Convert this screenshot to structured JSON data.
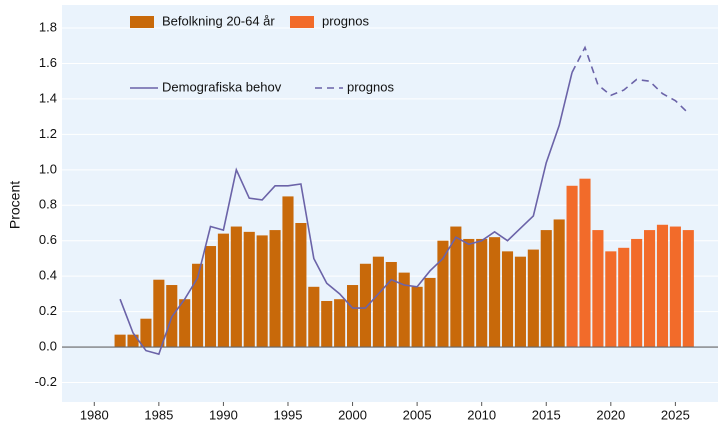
{
  "chart_data": {
    "type": "bar_line",
    "y_label": "Procent",
    "x": [
      1982,
      1983,
      1984,
      1985,
      1986,
      1987,
      1988,
      1989,
      1990,
      1991,
      1992,
      1993,
      1994,
      1995,
      1996,
      1997,
      1998,
      1999,
      2000,
      2001,
      2002,
      2003,
      2004,
      2005,
      2006,
      2007,
      2008,
      2009,
      2010,
      2011,
      2012,
      2013,
      2014,
      2015,
      2016,
      2017,
      2018,
      2019,
      2020,
      2021,
      2022,
      2023,
      2024,
      2025,
      2026
    ],
    "series": [
      {
        "name": "Befolkning 20-64 år",
        "type": "bar",
        "color": "#c8690a",
        "values": [
          0.07,
          0.07,
          0.16,
          0.38,
          0.35,
          0.27,
          0.47,
          0.57,
          0.64,
          0.68,
          0.65,
          0.63,
          0.66,
          0.85,
          0.7,
          0.34,
          0.26,
          0.27,
          0.35,
          0.47,
          0.51,
          0.48,
          0.42,
          0.34,
          0.39,
          0.6,
          0.68,
          0.61,
          0.61,
          0.62,
          0.54,
          0.51,
          0.55,
          0.66,
          0.72,
          null,
          null,
          null,
          null,
          null,
          null,
          null,
          null,
          null,
          null
        ]
      },
      {
        "name": "prognos",
        "type": "bar",
        "color": "#f26b2a",
        "values": [
          null,
          null,
          null,
          null,
          null,
          null,
          null,
          null,
          null,
          null,
          null,
          null,
          null,
          null,
          null,
          null,
          null,
          null,
          null,
          null,
          null,
          null,
          null,
          null,
          null,
          null,
          null,
          null,
          null,
          null,
          null,
          null,
          null,
          null,
          null,
          0.91,
          0.95,
          0.66,
          0.54,
          0.56,
          0.61,
          0.66,
          0.69,
          0.68,
          0.66
        ]
      },
      {
        "name": "Demografiska behov",
        "type": "line",
        "color": "#6b63a8",
        "dashed": false,
        "values": [
          0.27,
          0.08,
          -0.02,
          -0.04,
          0.17,
          0.27,
          0.39,
          0.68,
          0.66,
          1.0,
          0.84,
          0.83,
          0.91,
          0.91,
          0.92,
          0.5,
          0.36,
          0.3,
          0.22,
          0.22,
          0.3,
          0.38,
          0.35,
          0.34,
          0.43,
          0.5,
          0.62,
          0.58,
          0.6,
          0.65,
          0.6,
          0.67,
          0.74,
          1.04,
          1.25,
          1.55,
          null,
          null,
          null,
          null,
          null,
          null,
          null,
          null,
          null
        ]
      },
      {
        "name": "prognos",
        "type": "line",
        "color": "#6b63a8",
        "dashed": true,
        "values": [
          null,
          null,
          null,
          null,
          null,
          null,
          null,
          null,
          null,
          null,
          null,
          null,
          null,
          null,
          null,
          null,
          null,
          null,
          null,
          null,
          null,
          null,
          null,
          null,
          null,
          null,
          null,
          null,
          null,
          null,
          null,
          null,
          null,
          null,
          null,
          1.55,
          1.69,
          1.48,
          1.42,
          1.45,
          1.51,
          1.5,
          1.43,
          1.39,
          1.32
        ]
      }
    ],
    "xlim": [
      1977.5,
      2028.3
    ],
    "xticks": [
      1980,
      1985,
      1990,
      1995,
      2000,
      2005,
      2010,
      2015,
      2020,
      2025
    ],
    "ylim": [
      -0.31,
      1.93
    ],
    "yticks": [
      -0.2,
      {
        "value": 0,
        "label": "0.0"
      },
      0.2,
      0.4,
      0.6,
      0.8,
      {
        "value": 1,
        "label": "1.0"
      },
      1.2,
      1.4,
      1.6,
      1.8
    ],
    "grid": true
  }
}
